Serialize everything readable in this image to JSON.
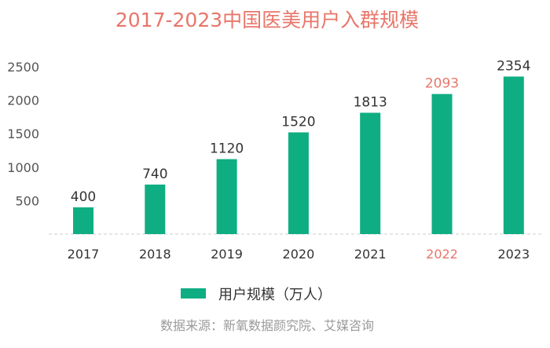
{
  "chart_data": {
    "type": "bar",
    "title": "2017-2023中国医美用户入群规模",
    "categories": [
      "2017",
      "2018",
      "2019",
      "2020",
      "2021",
      "2022",
      "2023"
    ],
    "series": [
      {
        "name": "用户规模（万人）",
        "values": [
          400,
          740,
          1120,
          1520,
          1813,
          2093,
          2354
        ]
      }
    ],
    "data_labels": [
      "400",
      "740",
      "1120",
      "1520",
      "1813",
      "2093",
      "2354"
    ],
    "yticks": [
      "500",
      "1000",
      "1500",
      "2000",
      "2500"
    ],
    "ylim": [
      0,
      2500
    ],
    "highlight_category": "2022",
    "grid": false,
    "legend_position": "bottom",
    "source": "数据来源：新氧数据颜究院、艾媒咨询"
  },
  "colors": {
    "bar": "#0fae82",
    "title": "#e8766a",
    "highlight": "#e8766a",
    "text": "#333333",
    "axis_text": "#555555",
    "source": "#9a9a9a",
    "baseline": "#cccccc"
  }
}
